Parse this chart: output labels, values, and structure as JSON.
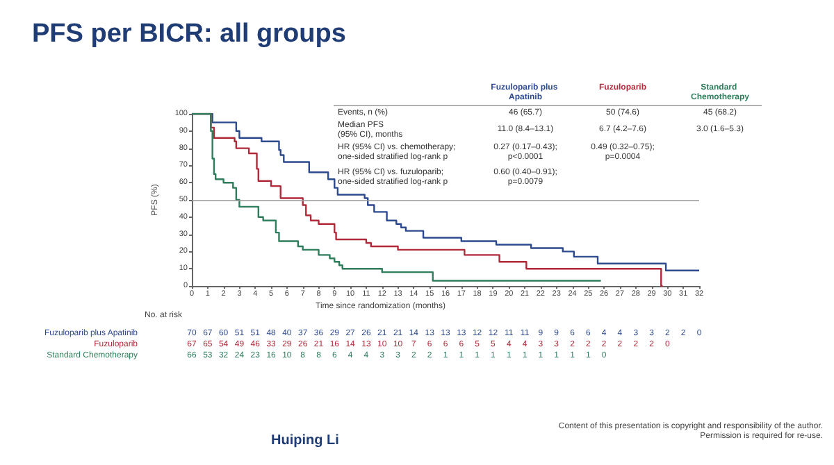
{
  "chart_data": {
    "type": "step",
    "title": "PFS per BICR: all groups",
    "xlabel": "Time since randomization (months)",
    "ylabel": "PFS (%)",
    "xlim": [
      0,
      32
    ],
    "xticks": [
      0,
      1,
      2,
      3,
      4,
      5,
      6,
      7,
      8,
      9,
      10,
      11,
      12,
      13,
      14,
      15,
      16,
      17,
      18,
      19,
      20,
      21,
      22,
      23,
      24,
      25,
      26,
      27,
      28,
      29,
      30,
      31,
      32
    ],
    "ylim": [
      0,
      100
    ],
    "yticks": [
      0,
      10,
      20,
      30,
      40,
      50,
      60,
      70,
      80,
      90,
      100
    ],
    "grid": false,
    "legend": false,
    "marker": "none",
    "line_style": "solid",
    "ref_lines": [
      {
        "axis": "y",
        "value": 50,
        "color": "#999999"
      }
    ],
    "series": [
      {
        "name": "Fuzuloparib plus Apatinib",
        "color": "#2e4a8e",
        "x": [
          0,
          1.3,
          2.8,
          3,
          4.4,
          5.5,
          5.6,
          5.8,
          7.4,
          8.6,
          9,
          9.2,
          10.9,
          11.1,
          11.5,
          12.3,
          12.9,
          13.2,
          13.5,
          14.6,
          17,
          19.2,
          21.4,
          23.4,
          24.1,
          25.6,
          29.9,
          32
        ],
        "values": [
          100,
          95,
          90,
          86,
          84,
          79,
          76,
          72,
          66,
          62,
          57,
          53,
          51,
          47,
          43,
          38,
          36,
          34,
          32,
          28,
          26,
          24,
          22,
          20,
          17,
          13,
          9,
          9
        ]
      },
      {
        "name": "Fuzuloparib",
        "color": "#b02a3a",
        "x": [
          0,
          1.2,
          1.4,
          2.7,
          2.8,
          3.6,
          4.1,
          4.2,
          5,
          5.6,
          7,
          7.2,
          7.5,
          8,
          9,
          9.1,
          11,
          11.3,
          13,
          17.2,
          19.4,
          21.1,
          29.6,
          29.7
        ],
        "values": [
          100,
          92,
          86,
          84,
          80,
          77,
          68,
          61,
          58,
          51,
          47,
          41,
          38,
          36,
          31,
          27,
          25,
          23,
          21,
          18,
          14,
          10,
          0,
          0
        ]
      },
      {
        "name": "Standard Chemotherapy",
        "color": "#2e7d5b",
        "x": [
          0,
          1.2,
          1.3,
          1.4,
          1.5,
          2,
          2.6,
          2.8,
          3,
          3.3,
          4.2,
          4.5,
          5.3,
          5.5,
          6.7,
          7,
          8,
          8.7,
          9,
          9.3,
          9.5,
          12,
          15.2,
          25.8
        ],
        "values": [
          100,
          90,
          74,
          65,
          62,
          60,
          57,
          50,
          46,
          46,
          40,
          38,
          31,
          26,
          23,
          21,
          18,
          16,
          14,
          12,
          10,
          8,
          3,
          3
        ]
      }
    ],
    "annotations": [
      "Events, n (%)",
      "46 (65.7)",
      "50 (74.6)",
      "45 (68.2)",
      "Median PFS\n(95% CI), months",
      "11.0 (8.4–13.1)",
      "6.7 (4.2–7.6)",
      "3.0 (1.6–5.3)",
      "HR (95% CI) vs. chemotherapy;\none-sided stratified log-rank p",
      "0.27 (0.17–0.43);\np<0.0001",
      "0.49 (0.32–0.75);\np=0.0004",
      "HR (95% CI) vs. fuzuloparib;\none-sided stratified log-rank p",
      "0.60 (0.40–0.91);\np=0.0079",
      "No. at risk",
      "70 67 60 51 51 48 40 37 36 29 27 26 21 21 14 13 13 13 12 12 11 11 9 9 6 6 4 4 3 3 2 2 0",
      "67 65 54 49 46 33 29 26 21 16 14 13 10 10 7 6 6 6 5 5 4 4 3 3 2 2 2 2 2 2 0",
      "66 53 32 24 23 16 10 8 8 6 4 4 3 3 2 2 1 1 1 1 1 1 1 1 1 1 0",
      "Huiping Li",
      "Content of this presentation is copyright and responsibility of the author.\nPermission is required for re-use."
    ]
  }
}
